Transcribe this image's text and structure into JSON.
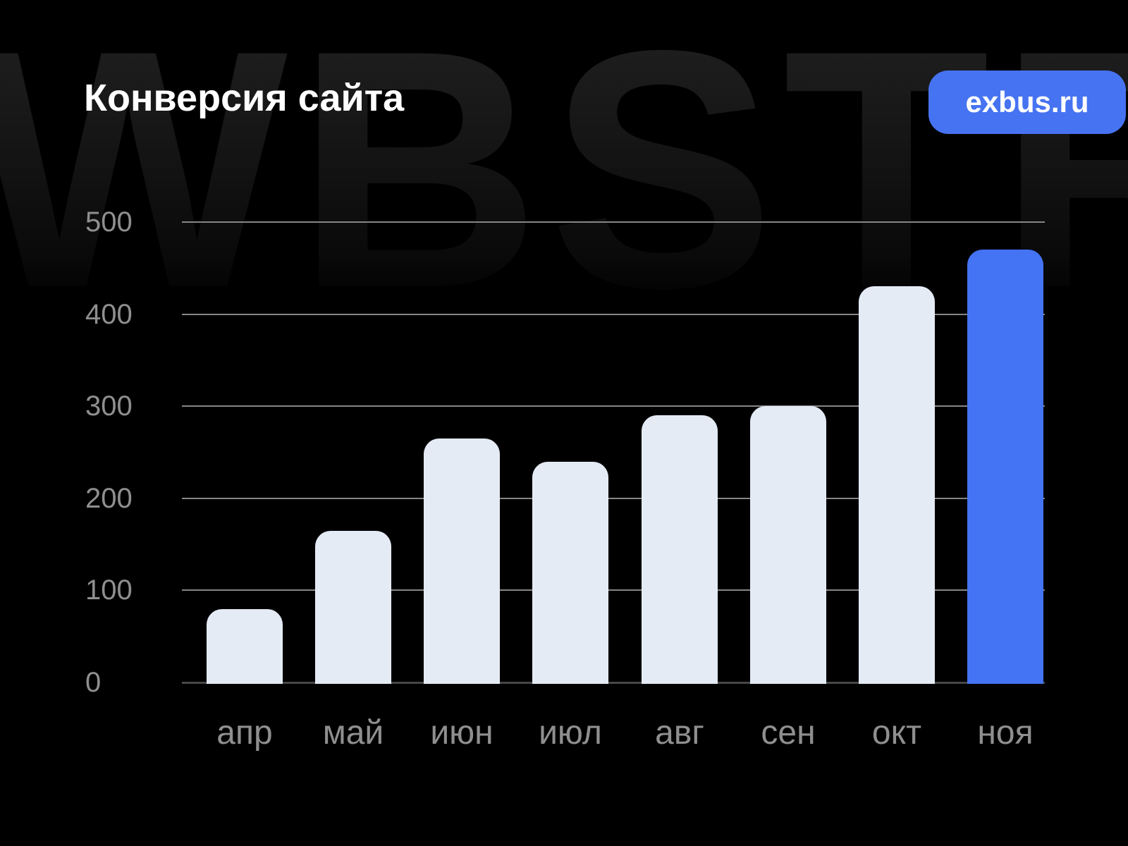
{
  "title": "Конверсия сайта",
  "badge": {
    "label": "exbus.ru"
  },
  "watermark": "WBSTR",
  "colors": {
    "background": "#000000",
    "title": "#FFFFFF",
    "badge_bg": "#4673F1",
    "bar_default": "#E4EBF5",
    "bar_highlight": "#4473F3",
    "gridline": "#868686",
    "zero_line": "#474747",
    "axis_label": "#8F8F8F"
  },
  "chart_data": {
    "type": "bar",
    "title": "Конверсия сайта",
    "categories": [
      "апр",
      "май",
      "июн",
      "июл",
      "авг",
      "сен",
      "окт",
      "ноя"
    ],
    "values": [
      80,
      165,
      265,
      240,
      290,
      300,
      430,
      470
    ],
    "highlighted_category": "ноя",
    "highlight_reason": "current month shown in brand blue",
    "y_ticks": [
      0,
      100,
      200,
      300,
      400,
      500
    ],
    "ylim": [
      0,
      500
    ],
    "xlabel": "",
    "ylabel": "",
    "grid": true,
    "legend": false
  }
}
